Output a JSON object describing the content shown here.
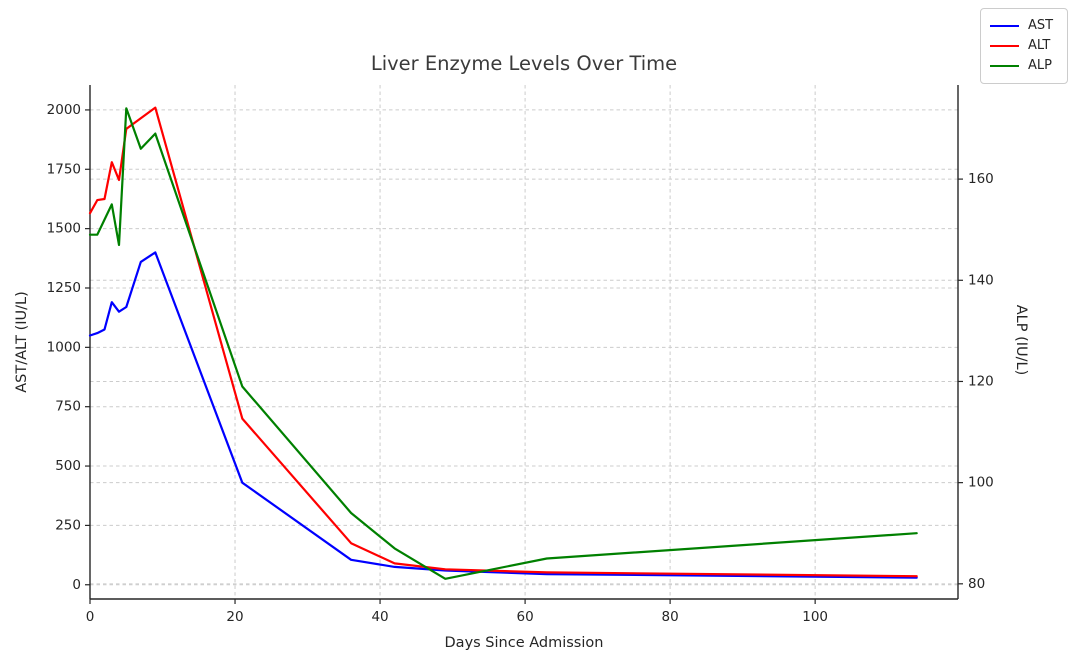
{
  "chart_data": {
    "type": "line",
    "title": "Liver Enzyme Levels Over Time",
    "xlabel": "Days Since Admission",
    "ylabel_left": "AST/ALT (IU/L)",
    "ylabel_right": "ALP (IU/L)",
    "grid": true,
    "legend_position": "top-right-outside",
    "x_ticks": [
      0,
      20,
      40,
      60,
      80,
      100
    ],
    "y_ticks_left": [
      0,
      250,
      500,
      750,
      1000,
      1250,
      1500,
      1750,
      2000
    ],
    "y_ticks_right": [
      80,
      100,
      120,
      140,
      160
    ],
    "xlim": [
      0,
      119.7
    ],
    "ylim_left": [
      -60,
      2105
    ],
    "ylim_right": [
      77,
      178.6
    ],
    "x_days": [
      0,
      1,
      2,
      3,
      4,
      5,
      7,
      9,
      21,
      36,
      42,
      49,
      63,
      114
    ],
    "series": [
      {
        "name": "AST",
        "color": "#0000ff",
        "axis": "left",
        "values": [
          1050,
          1060,
          1075,
          1190,
          1150,
          1170,
          1360,
          1400,
          430,
          105,
          75,
          60,
          45,
          30
        ]
      },
      {
        "name": "ALT",
        "color": "#ff0000",
        "axis": "left",
        "values": [
          1565,
          1620,
          1625,
          1780,
          1705,
          1920,
          1965,
          2010,
          700,
          175,
          90,
          65,
          52,
          36
        ]
      },
      {
        "name": "ALP",
        "color": "#008000",
        "axis": "right",
        "values": [
          149,
          149,
          152,
          155,
          147,
          174,
          166,
          169,
          119,
          94,
          87,
          81,
          85,
          90
        ]
      }
    ]
  },
  "colors": {
    "background": "#ffffff",
    "grid": "#cccccc",
    "spine": "#262626",
    "text": "#262626",
    "title": "#3a3a3a",
    "ast_line": "#0000ff",
    "alt_line": "#ff0000",
    "alp_line": "#008000"
  }
}
